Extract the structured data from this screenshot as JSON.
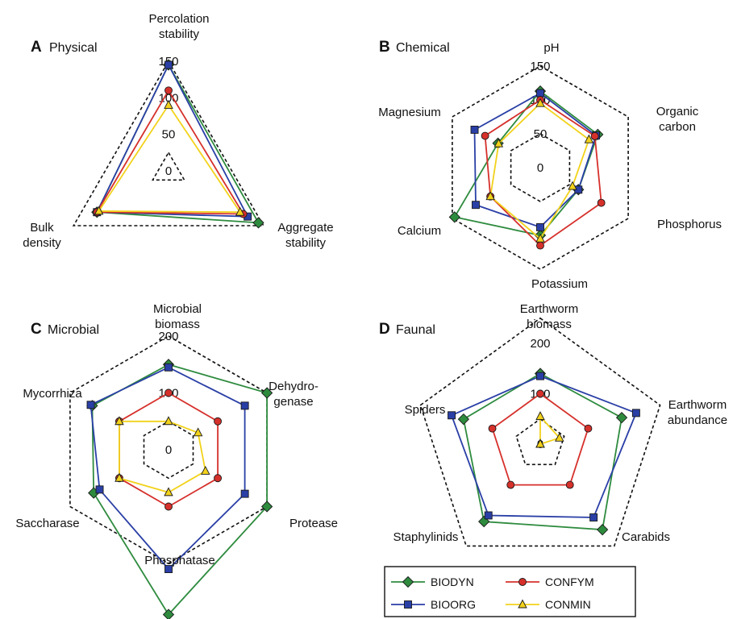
{
  "series_styles": [
    {
      "name": "BIODYN",
      "color": "#2e8b3e",
      "marker": "diamond-marker"
    },
    {
      "name": "BIOORG",
      "color": "#2a3fa6",
      "marker": "square-marker"
    },
    {
      "name": "CONFYM",
      "color": "#d6302b",
      "marker": "circle-marker"
    },
    {
      "name": "CONMIN",
      "color": "#f2d21b",
      "marker": "triangle-marker"
    }
  ],
  "legend": {
    "entries": [
      {
        "label": "BIODYN",
        "series": "BIODYN"
      },
      {
        "label": "CONFYM",
        "series": "CONFYM"
      },
      {
        "label": "BIOORG",
        "series": "BIOORG"
      },
      {
        "label": "CONMIN",
        "series": "CONMIN"
      }
    ]
  },
  "chart_data": [
    {
      "type": "radar",
      "letter": "A",
      "title": "Physical",
      "axes": [
        "Percolation stability",
        "Aggregate stability",
        "Bulk density"
      ],
      "axis_label_lines": [
        [
          "Percolation",
          "stability"
        ],
        [
          "Aggregate",
          "stability"
        ],
        [
          "Bulk",
          "density"
        ]
      ],
      "ticks": [
        "0",
        "50",
        "100",
        "150"
      ],
      "tick_values": [
        0,
        50,
        100,
        150
      ],
      "rmin": 0,
      "rmax": 150,
      "outline_value": 150,
      "inner_value": 25,
      "series": [
        {
          "name": "BIODYN",
          "values": [
            145,
            142,
            113
          ]
        },
        {
          "name": "BIOORG",
          "values": [
            145,
            125,
            113
          ]
        },
        {
          "name": "CONFYM",
          "values": [
            110,
            118,
            113
          ]
        },
        {
          "name": "CONMIN",
          "values": [
            90,
            113,
            110
          ]
        }
      ]
    },
    {
      "type": "radar",
      "letter": "B",
      "title": "Chemical",
      "axes": [
        "pH",
        "Organic carbon",
        "Phosphorus",
        "Potassium",
        "Calcium",
        "Magnesium"
      ],
      "axis_label_lines": [
        [
          "pH"
        ],
        [
          "Organic",
          "carbon"
        ],
        [
          "Phosphorus"
        ],
        [
          "Potassium"
        ],
        [
          "Calcium"
        ],
        [
          "Magnesium"
        ]
      ],
      "ticks": [
        "0",
        "50",
        "100",
        "150"
      ],
      "tick_values": [
        0,
        50,
        100,
        150
      ],
      "rmin": 0,
      "rmax": 150,
      "outline_value": 150,
      "inner_value": 50,
      "series": [
        {
          "name": "BIODYN",
          "values": [
            113,
            98,
            65,
            100,
            146,
            72
          ]
        },
        {
          "name": "BIOORG",
          "values": [
            110,
            95,
            65,
            88,
            110,
            112
          ]
        },
        {
          "name": "CONFYM",
          "values": [
            100,
            93,
            104,
            115,
            85,
            94
          ]
        },
        {
          "name": "CONMIN",
          "values": [
            95,
            83,
            55,
            105,
            85,
            71
          ]
        }
      ]
    },
    {
      "type": "radar",
      "letter": "C",
      "title": "Microbial",
      "axes": [
        "Microbial biomass",
        "Dehydro-genase",
        "Protease",
        "Phosphatase",
        "Saccharase",
        "Mycorrhiza"
      ],
      "axis_label_lines": [
        [
          "Microbial",
          "biomass"
        ],
        [
          "Dehydro-",
          "genase"
        ],
        [
          "Protease"
        ],
        [
          "Phosphatase"
        ],
        [
          "Saccharase"
        ],
        [
          "Mycorrhiza"
        ]
      ],
      "ticks": [
        "0",
        "100",
        "200"
      ],
      "tick_values": [
        0,
        100,
        200
      ],
      "rmin": 0,
      "rmax": 200,
      "outline_value": 200,
      "inner_value": 50,
      "series": [
        {
          "name": "BIODYN",
          "values": [
            150,
            200,
            200,
            290,
            152,
            155
          ]
        },
        {
          "name": "BIOORG",
          "values": [
            145,
            155,
            155,
            210,
            140,
            158
          ]
        },
        {
          "name": "CONFYM",
          "values": [
            100,
            100,
            100,
            100,
            100,
            100
          ]
        },
        {
          "name": "CONMIN",
          "values": [
            50,
            60,
            75,
            75,
            100,
            100
          ]
        }
      ]
    },
    {
      "type": "radar",
      "letter": "D",
      "title": "Faunal",
      "axes": [
        "Earthworm biomass",
        "Earthworm abundance",
        "Carabids",
        "Staphylinids",
        "Spiders"
      ],
      "axis_label_lines": [
        [
          "Earthworm",
          "biomass"
        ],
        [
          "Earthworm",
          "abundance"
        ],
        [
          "Carabids"
        ],
        [
          "Staphylinids"
        ],
        [
          "Spiders"
        ]
      ],
      "ticks": [
        "0",
        "100",
        "200"
      ],
      "tick_values": [
        0,
        100,
        200
      ],
      "rmin": 0,
      "rmax": 200,
      "outline_value": 250,
      "inner_value": 50,
      "series": [
        {
          "name": "BIODYN",
          "values": [
            140,
            170,
            210,
            190,
            160
          ]
        },
        {
          "name": "BIOORG",
          "values": [
            135,
            200,
            180,
            175,
            185
          ]
        },
        {
          "name": "CONFYM",
          "values": [
            100,
            100,
            100,
            100,
            100
          ]
        },
        {
          "name": "CONMIN",
          "values": [
            55,
            40,
            0,
            0,
            0
          ]
        }
      ]
    }
  ]
}
